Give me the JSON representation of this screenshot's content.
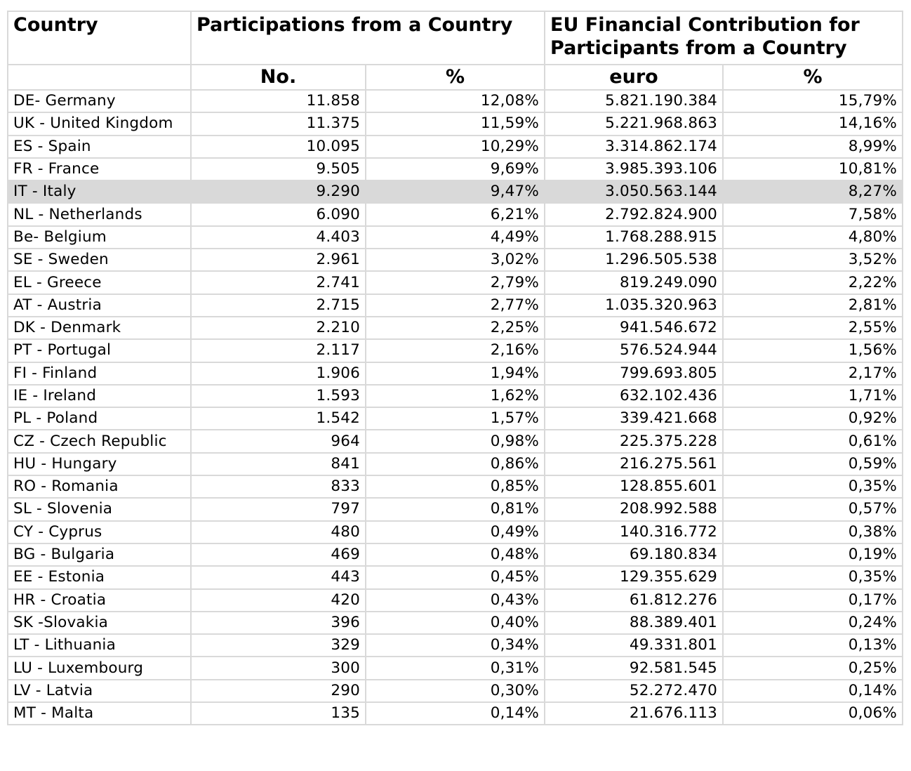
{
  "headers": {
    "country": "Country",
    "participations": "Participations from a Country",
    "contribution": "EU Financial Contribution for Participants from a Country",
    "no": "No.",
    "pct1": "%",
    "euro": "euro",
    "pct2": "%"
  },
  "highlight_color": "#d9d9d9",
  "grid_color": "#d9d9d9",
  "rows": [
    {
      "country": "DE- Germany",
      "no": "11.858",
      "pct": "12,08%",
      "euro": "5.821.190.384",
      "euro_pct": "15,79%"
    },
    {
      "country": "UK - United Kingdom",
      "no": "11.375",
      "pct": "11,59%",
      "euro": "5.221.968.863",
      "euro_pct": "14,16%"
    },
    {
      "country": "ES - Spain",
      "no": "10.095",
      "pct": "10,29%",
      "euro": "3.314.862.174",
      "euro_pct": "8,99%"
    },
    {
      "country": "FR - France",
      "no": "9.505",
      "pct": "9,69%",
      "euro": "3.985.393.106",
      "euro_pct": "10,81%"
    },
    {
      "country": "IT - Italy",
      "no": "9.290",
      "pct": "9,47%",
      "euro": "3.050.563.144",
      "euro_pct": "8,27%",
      "highlighted": true
    },
    {
      "country": "NL - Netherlands",
      "no": "6.090",
      "pct": "6,21%",
      "euro": "2.792.824.900",
      "euro_pct": "7,58%"
    },
    {
      "country": "Be- Belgium",
      "no": "4.403",
      "pct": "4,49%",
      "euro": "1.768.288.915",
      "euro_pct": "4,80%"
    },
    {
      "country": "SE - Sweden",
      "no": "2.961",
      "pct": "3,02%",
      "euro": "1.296.505.538",
      "euro_pct": "3,52%"
    },
    {
      "country": "EL - Greece",
      "no": "2.741",
      "pct": "2,79%",
      "euro": "819.249.090",
      "euro_pct": "2,22%"
    },
    {
      "country": "AT - Austria",
      "no": "2.715",
      "pct": "2,77%",
      "euro": "1.035.320.963",
      "euro_pct": "2,81%"
    },
    {
      "country": "DK - Denmark",
      "no": "2.210",
      "pct": "2,25%",
      "euro": "941.546.672",
      "euro_pct": "2,55%"
    },
    {
      "country": "PT - Portugal",
      "no": "2.117",
      "pct": "2,16%",
      "euro": "576.524.944",
      "euro_pct": "1,56%"
    },
    {
      "country": "FI - Finland",
      "no": "1.906",
      "pct": "1,94%",
      "euro": "799.693.805",
      "euro_pct": "2,17%"
    },
    {
      "country": "IE - Ireland",
      "no": "1.593",
      "pct": "1,62%",
      "euro": "632.102.436",
      "euro_pct": "1,71%"
    },
    {
      "country": "PL - Poland",
      "no": "1.542",
      "pct": "1,57%",
      "euro": "339.421.668",
      "euro_pct": "0,92%"
    },
    {
      "country": "CZ - Czech Republic",
      "no": "964",
      "pct": "0,98%",
      "euro": "225.375.228",
      "euro_pct": "0,61%"
    },
    {
      "country": "HU - Hungary",
      "no": "841",
      "pct": "0,86%",
      "euro": "216.275.561",
      "euro_pct": "0,59%"
    },
    {
      "country": "RO - Romania",
      "no": "833",
      "pct": "0,85%",
      "euro": "128.855.601",
      "euro_pct": "0,35%"
    },
    {
      "country": "SL - Slovenia",
      "no": "797",
      "pct": "0,81%",
      "euro": "208.992.588",
      "euro_pct": "0,57%"
    },
    {
      "country": "CY - Cyprus",
      "no": "480",
      "pct": "0,49%",
      "euro": "140.316.772",
      "euro_pct": "0,38%"
    },
    {
      "country": "BG - Bulgaria",
      "no": "469",
      "pct": "0,48%",
      "euro": "69.180.834",
      "euro_pct": "0,19%"
    },
    {
      "country": "EE - Estonia",
      "no": "443",
      "pct": "0,45%",
      "euro": "129.355.629",
      "euro_pct": "0,35%"
    },
    {
      "country": "HR - Croatia",
      "no": "420",
      "pct": "0,43%",
      "euro": "61.812.276",
      "euro_pct": "0,17%"
    },
    {
      "country": "SK -Slovakia",
      "no": "396",
      "pct": "0,40%",
      "euro": "88.389.401",
      "euro_pct": "0,24%"
    },
    {
      "country": "LT - Lithuania",
      "no": "329",
      "pct": "0,34%",
      "euro": "49.331.801",
      "euro_pct": "0,13%"
    },
    {
      "country": "LU - Luxembourg",
      "no": "300",
      "pct": "0,31%",
      "euro": "92.581.545",
      "euro_pct": "0,25%"
    },
    {
      "country": "LV - Latvia",
      "no": "290",
      "pct": "0,30%",
      "euro": "52.272.470",
      "euro_pct": "0,14%"
    },
    {
      "country": "MT - Malta",
      "no": "135",
      "pct": "0,14%",
      "euro": "21.676.113",
      "euro_pct": "0,06%"
    }
  ]
}
